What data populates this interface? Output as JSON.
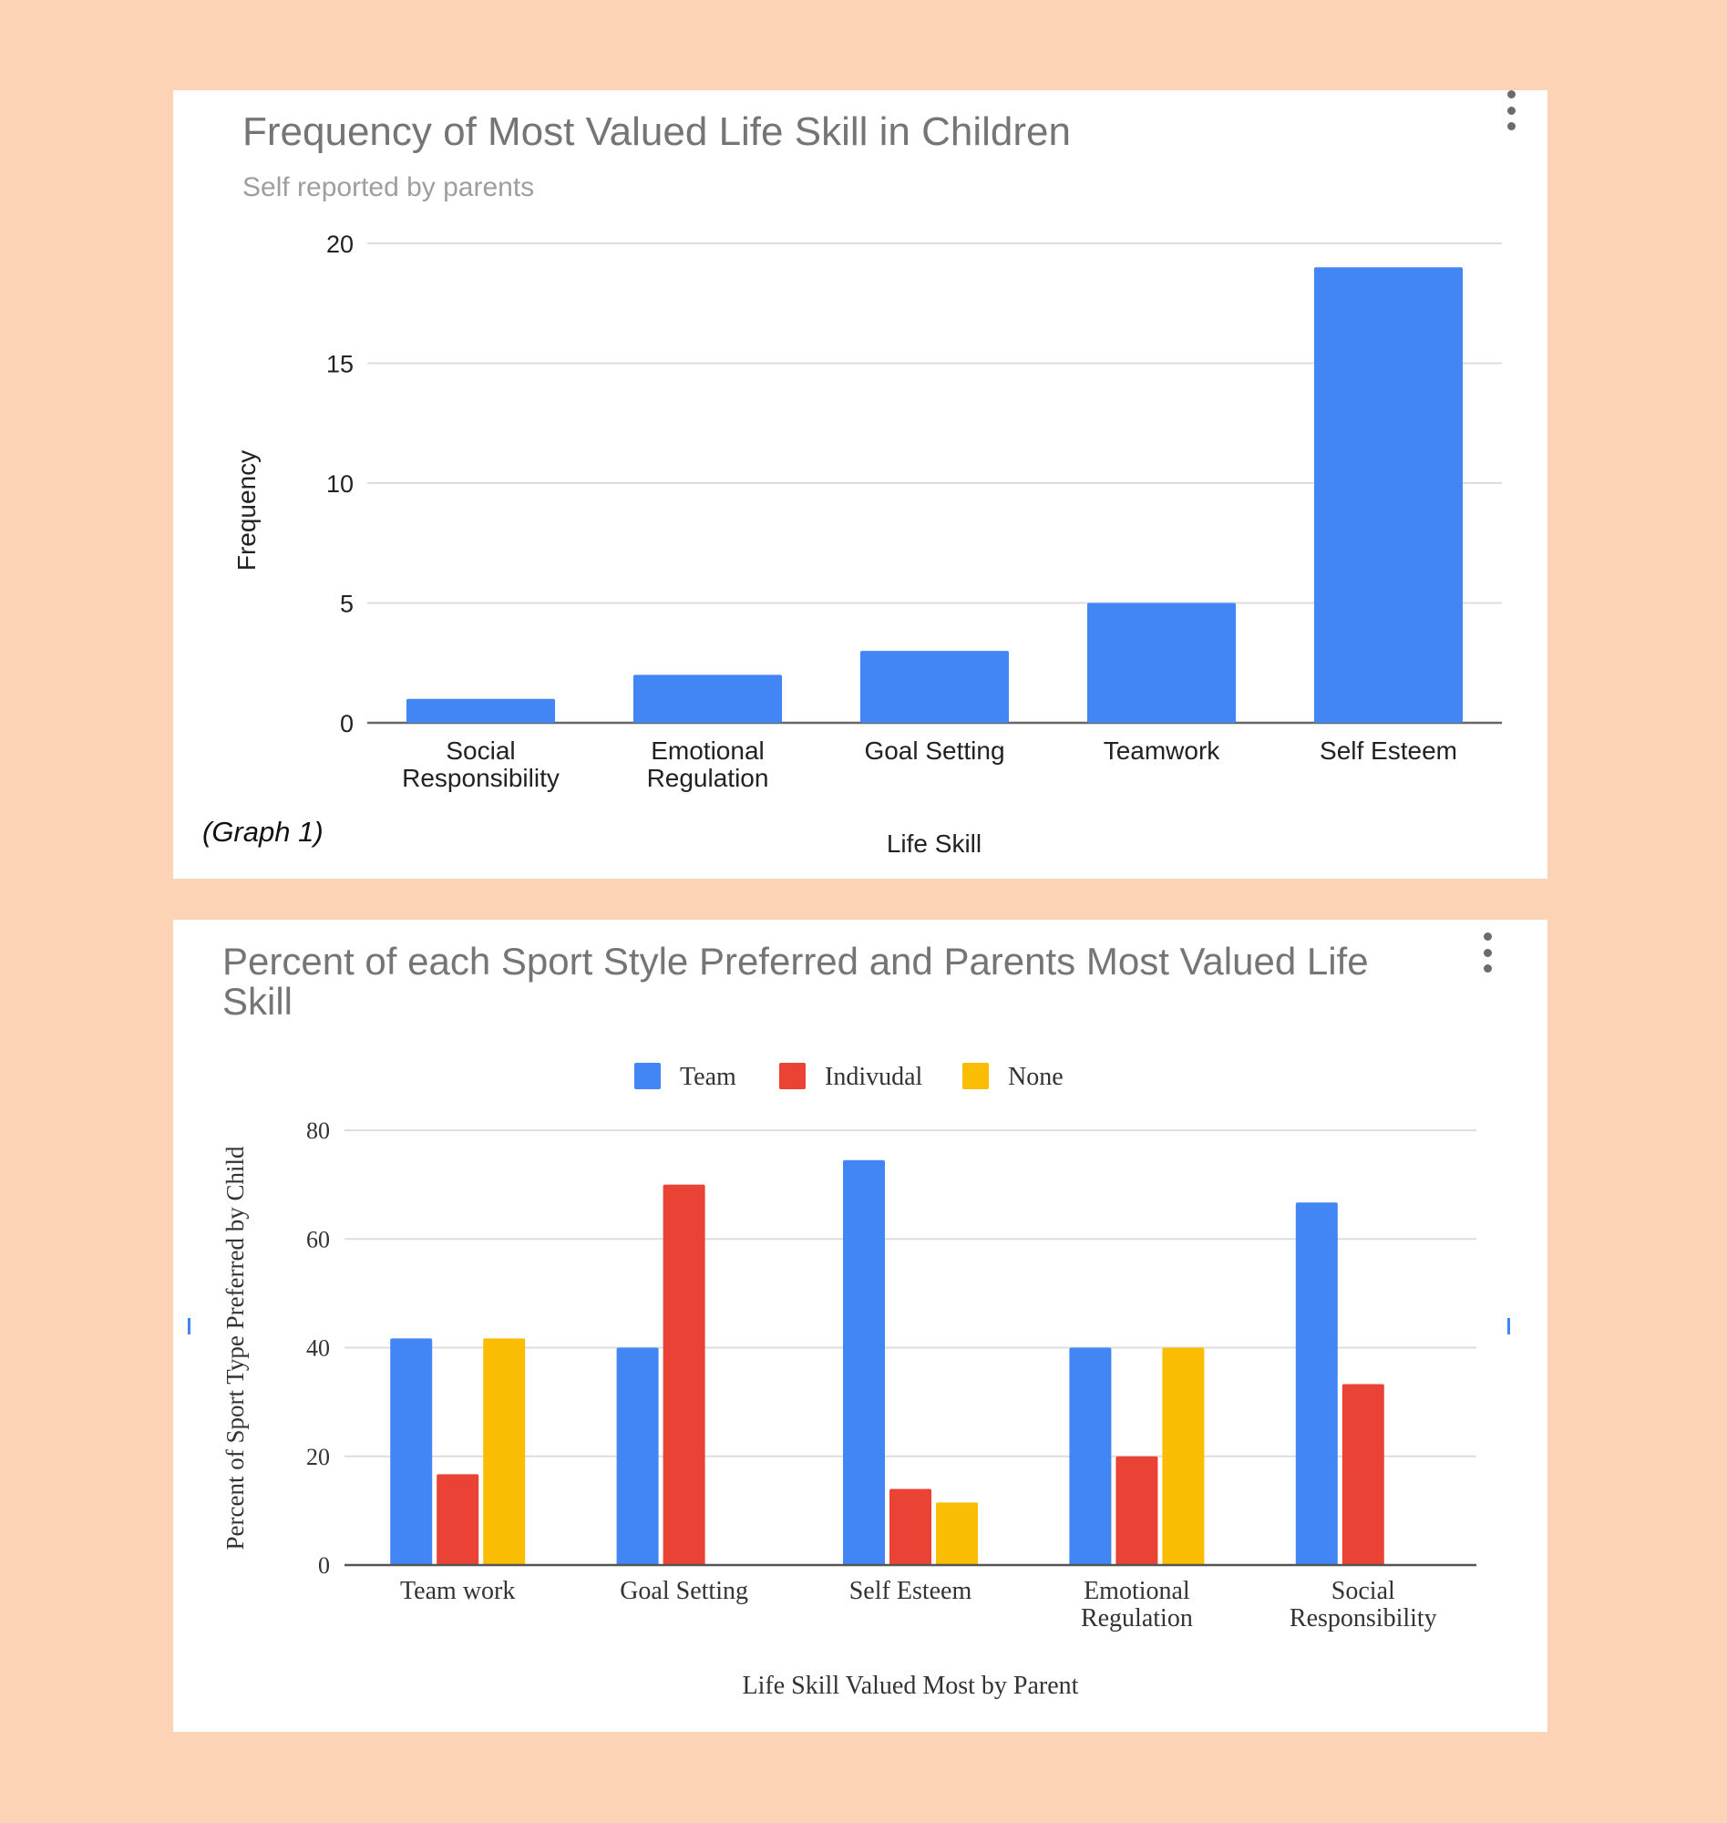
{
  "charts": [
    {
      "title": "Frequency of Most Valued Life Skill in Children",
      "subtitle": "Self reported by parents",
      "caption": "(Graph 1)",
      "menu_icon": "more-vert-icon"
    },
    {
      "title_lines": [
        "Percent of each Sport Style Preferred and Parents Most Valued Life",
        "Skill"
      ],
      "menu_icon": "more-vert-icon"
    }
  ],
  "chart_data": [
    {
      "type": "bar",
      "title": "Frequency of Most Valued Life Skill in Children",
      "subtitle": "Self reported by parents",
      "xlabel": "Life Skill",
      "ylabel": "Frequency",
      "categories": [
        [
          "Social",
          "Responsibility"
        ],
        [
          "Emotional",
          "Regulation"
        ],
        [
          "Goal Setting"
        ],
        [
          "Teamwork"
        ],
        [
          "Self Esteem"
        ]
      ],
      "values": [
        1,
        2,
        3,
        5,
        19
      ],
      "ylim": [
        0,
        20
      ],
      "yticks": [
        0,
        5,
        10,
        15,
        20
      ],
      "color": "#4285f4",
      "grid": true,
      "legend": "none"
    },
    {
      "type": "bar",
      "title": "Percent of each Sport Style Preferred and Parents Most Valued Life Skill",
      "xlabel": "Life Skill Valued Most by Parent",
      "ylabel": "Percent of Sport Type Preferred by Child",
      "categories": [
        [
          "Team work"
        ],
        [
          "Goal Setting"
        ],
        [
          "Self Esteem"
        ],
        [
          "Emotional",
          "Regulation"
        ],
        [
          "Social",
          "Responsibility"
        ]
      ],
      "series": [
        {
          "name": "Team",
          "color": "#4285f4",
          "values": [
            41.7,
            40,
            74.5,
            40,
            66.7
          ]
        },
        {
          "name": "Indivudal",
          "color": "#ea4335",
          "values": [
            16.7,
            70,
            14,
            20,
            33.3
          ]
        },
        {
          "name": "None",
          "color": "#fbbc04",
          "values": [
            41.7,
            0,
            11.5,
            40,
            0
          ]
        }
      ],
      "ylim": [
        0,
        80
      ],
      "yticks": [
        0,
        20,
        40,
        60,
        80
      ],
      "grid": true,
      "legend": "top-center"
    }
  ]
}
